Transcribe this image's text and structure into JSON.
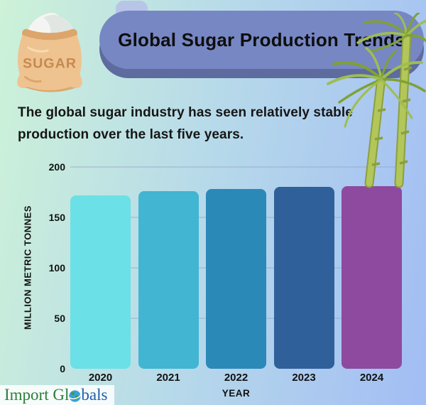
{
  "colors": {
    "background_left": "#cdf2d8",
    "background_right": "#a2bdf4",
    "banner": "#7787c3",
    "banner_shadow": "#5d6b9e",
    "banner_tab": "#b8c5e7"
  },
  "header": {
    "title": "Global Sugar Production Trends",
    "sugar_bag_label": "SUGAR"
  },
  "intro": {
    "line1": "The global sugar industry has seen relatively stable",
    "line2": "production over the last five years."
  },
  "chart_data": {
    "type": "bar",
    "title": "",
    "categories": [
      "2020",
      "2021",
      "2022",
      "2023",
      "2024"
    ],
    "values": [
      172,
      176,
      178,
      180,
      181
    ],
    "bar_colors": [
      "#6be0e6",
      "#41b5d2",
      "#2b89b8",
      "#30609a",
      "#8d4a9f"
    ],
    "xlabel": "YEAR",
    "ylabel": "MILLION METRIC TONNES",
    "ylim": [
      0,
      200
    ],
    "yticks": [
      0,
      50,
      100,
      150,
      200
    ],
    "grid": true,
    "legend": "none"
  },
  "footer": {
    "logo_prefix": "Import Gl",
    "logo_suffix": "bals"
  }
}
